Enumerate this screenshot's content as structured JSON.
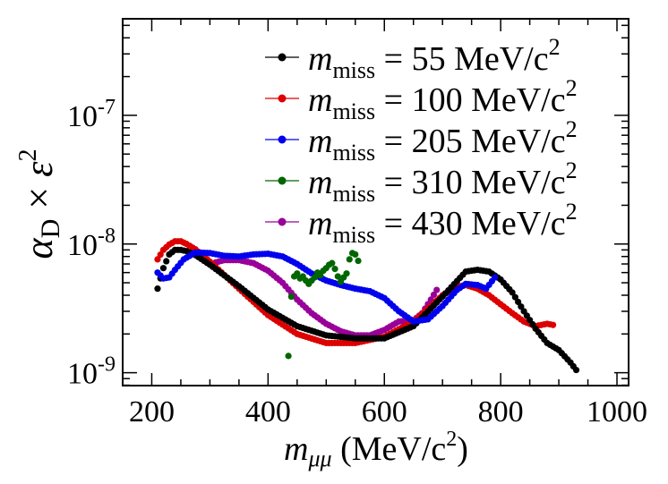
{
  "chart_data": {
    "type": "scatter",
    "title": "",
    "xlabel": "m_μμ (MeV/c²)",
    "ylabel": "α_D × ε²",
    "xlabel_parts": {
      "var": "m",
      "sub": "μμ",
      "unit": " (MeV/c",
      "sup": "2",
      "close": ")"
    },
    "ylabel_parts": {
      "var1": "α",
      "sub": "D",
      "times": " × ",
      "var2": "ε",
      "sup": "2"
    },
    "xlim": [
      150,
      1020
    ],
    "ylim_log10": [
      -9.1,
      -6.25
    ],
    "yscale": "log",
    "x_ticks": [
      200,
      400,
      600,
      800,
      1000
    ],
    "x_tick_labels": [
      "200",
      "400",
      "600",
      "800",
      "1000"
    ],
    "y_ticks": [
      {
        "base": "10",
        "exp": "-9"
      },
      {
        "base": "10",
        "exp": "-8"
      },
      {
        "base": "10",
        "exp": "-7"
      }
    ],
    "legend_position": "top-right",
    "series": [
      {
        "name": "m_miss = 55 MeV/c²",
        "label_value": "= 55 MeV/c",
        "label_sup": "2",
        "color": "#000000",
        "x": [
          210,
          220,
          230,
          240,
          250,
          260,
          275,
          300,
          350,
          400,
          450,
          500,
          550,
          600,
          650,
          700,
          740,
          760,
          780,
          800,
          820,
          840,
          860,
          880,
          900,
          920,
          930
        ],
        "y": [
          4.5e-09,
          6.5e-09,
          8.3e-09,
          9e-09,
          9e-09,
          8.8e-09,
          8.2e-09,
          6.9e-09,
          4.7e-09,
          3.1e-09,
          2.3e-09,
          1.95e-09,
          1.85e-09,
          1.85e-09,
          2.3e-09,
          3.9e-09,
          6.1e-09,
          6.3e-09,
          6.1e-09,
          5.3e-09,
          4.2e-09,
          3e-09,
          2.2e-09,
          1.7e-09,
          1.5e-09,
          1.2e-09,
          1.05e-09
        ]
      },
      {
        "name": "m_miss = 100 MeV/c²",
        "label_value": "= 100 MeV/c",
        "label_sup": "2",
        "color": "#dd0000",
        "x": [
          210,
          220,
          230,
          240,
          250,
          260,
          275,
          300,
          350,
          400,
          450,
          500,
          550,
          600,
          650,
          680,
          700,
          720,
          740,
          760,
          780,
          800,
          820,
          840,
          860,
          870,
          880,
          890
        ],
        "y": [
          7.6e-09,
          9e-09,
          9.9e-09,
          1.05e-08,
          1.05e-08,
          1e-08,
          9.1e-09,
          7.3e-09,
          4.5e-09,
          2.8e-09,
          2e-09,
          1.7e-09,
          1.7e-09,
          1.9e-09,
          2.5e-09,
          3.3e-09,
          4e-09,
          4.6e-09,
          4.8e-09,
          4.5e-09,
          4e-09,
          3.4e-09,
          2.9e-09,
          2.5e-09,
          2.3e-09,
          2.35e-09,
          2.4e-09,
          2.35e-09
        ]
      },
      {
        "name": "m_miss = 205 MeV/c²",
        "label_value": "= 205 MeV/c",
        "label_sup": "2",
        "color": "#0000ee",
        "x": [
          210,
          220,
          230,
          240,
          255,
          275,
          300,
          325,
          350,
          375,
          400,
          425,
          450,
          475,
          500,
          525,
          550,
          575,
          600,
          625,
          650,
          675,
          700,
          725,
          740,
          760,
          775,
          790
        ],
        "y": [
          6e-09,
          5.4e-09,
          5.5e-09,
          6.3e-09,
          7.6e-09,
          8.6e-09,
          8.5e-09,
          8.1e-09,
          8e-09,
          8.3e-09,
          8.4e-09,
          8e-09,
          7e-09,
          5.9e-09,
          5.2e-09,
          4.8e-09,
          4.5e-09,
          4.3e-09,
          3.8e-09,
          3e-09,
          2.5e-09,
          2.6e-09,
          3.3e-09,
          4.4e-09,
          4.9e-09,
          4.8e-09,
          4.5e-09,
          5.5e-09
        ]
      },
      {
        "name": "m_miss = 310 MeV/c²",
        "label_value": "= 310 MeV/c",
        "label_sup": "2",
        "color": "#006600",
        "x": [
          435,
          440,
          445,
          450,
          455,
          460,
          465,
          470,
          475,
          480,
          485,
          490,
          495,
          500,
          505,
          510,
          515,
          520,
          525,
          530,
          535,
          540,
          545,
          550,
          555
        ],
        "y": [
          1.35e-09,
          3.9e-09,
          5.6e-09,
          5.9e-09,
          5.4e-09,
          5.6e-09,
          5.2e-09,
          4.9e-09,
          5.2e-09,
          5.5e-09,
          6e-09,
          5.7e-09,
          6.2e-09,
          6.5e-09,
          6.9e-09,
          7.1e-09,
          6.4e-09,
          5.6e-09,
          5.1e-09,
          5.5e-09,
          5.9e-09,
          7.6e-09,
          8.5e-09,
          8.3e-09,
          7.4e-09
        ]
      },
      {
        "name": "m_miss = 430 MeV/c²",
        "label_value": "= 430 MeV/c",
        "label_sup": "2",
        "color": "#990099",
        "x": [
          310,
          325,
          350,
          375,
          400,
          425,
          450,
          475,
          500,
          525,
          550,
          575,
          600,
          625,
          650,
          665,
          680,
          690
        ],
        "y": [
          7.2e-09,
          7.5e-09,
          7.5e-09,
          7.1e-09,
          6.2e-09,
          5e-09,
          3.7e-09,
          2.9e-09,
          2.4e-09,
          2.1e-09,
          1.95e-09,
          1.95e-09,
          2.15e-09,
          2.5e-09,
          2.55e-09,
          2.9e-09,
          3.7e-09,
          4.4e-09
        ]
      }
    ]
  }
}
